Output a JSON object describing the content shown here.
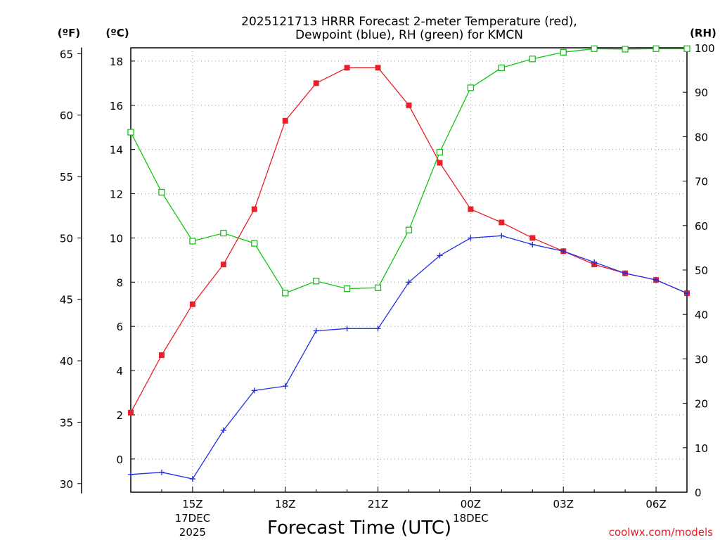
{
  "chart_data": {
    "type": "line",
    "title": [
      "2025121713 HRRR Forecast 2-meter Temperature (red),",
      "Dewpoint (blue), RH (green) for KMCN"
    ],
    "xlabel": "Forecast Time (UTC)",
    "credit": "coolwx.com/models",
    "units": {
      "fahrenheit": "(ºF)",
      "celsius": "(ºC)",
      "rh": "(RH)"
    },
    "x_range": [
      13,
      31
    ],
    "x_ticks": [
      {
        "x": 15,
        "label": "15Z",
        "sub": [
          "17DEC",
          "2025"
        ]
      },
      {
        "x": 18,
        "label": "18Z",
        "sub": []
      },
      {
        "x": 21,
        "label": "21Z",
        "sub": []
      },
      {
        "x": 24,
        "label": "00Z",
        "sub": [
          "18DEC"
        ]
      },
      {
        "x": 27,
        "label": "03Z",
        "sub": []
      },
      {
        "x": 30,
        "label": "06Z",
        "sub": []
      }
    ],
    "y_celsius": {
      "range": [
        -1.5,
        18.6
      ],
      "ticks": [
        0,
        2,
        4,
        6,
        8,
        10,
        12,
        14,
        16,
        18
      ]
    },
    "y_fahrenheit": {
      "ticks": [
        30,
        35,
        40,
        45,
        50,
        55,
        60,
        65
      ]
    },
    "y_rh": {
      "range": [
        0,
        100
      ],
      "ticks": [
        0,
        10,
        20,
        30,
        40,
        50,
        60,
        70,
        80,
        90,
        100
      ]
    },
    "x": [
      13,
      14,
      15,
      16,
      17,
      18,
      19,
      20,
      21,
      22,
      23,
      24,
      25,
      26,
      27,
      28,
      29,
      30,
      31
    ],
    "series": [
      {
        "name": "Temperature",
        "axis": "celsius",
        "color": "#e8202a",
        "marker": "filled-square",
        "values": [
          2.1,
          4.7,
          7.0,
          8.8,
          11.3,
          15.3,
          17.0,
          17.7,
          17.7,
          16.0,
          13.4,
          11.3,
          10.7,
          10.0,
          9.4,
          8.8,
          8.4,
          8.1,
          7.5
        ]
      },
      {
        "name": "Dewpoint",
        "axis": "celsius",
        "color": "#2030e8",
        "marker": "plus",
        "values": [
          -0.7,
          -0.6,
          -0.9,
          1.3,
          3.1,
          3.3,
          5.8,
          5.9,
          5.9,
          8.0,
          9.2,
          10.0,
          10.1,
          9.7,
          9.4,
          8.9,
          8.4,
          8.1,
          7.5
        ]
      },
      {
        "name": "RH",
        "axis": "rh",
        "color": "#10c810",
        "marker": "open-square",
        "values": [
          81,
          67.5,
          56.5,
          58.3,
          56,
          44.8,
          47.5,
          45.8,
          46,
          59,
          76.5,
          91,
          95.5,
          97.5,
          99,
          99.8,
          99.7,
          99.8,
          99.8
        ]
      }
    ],
    "grid": true
  }
}
